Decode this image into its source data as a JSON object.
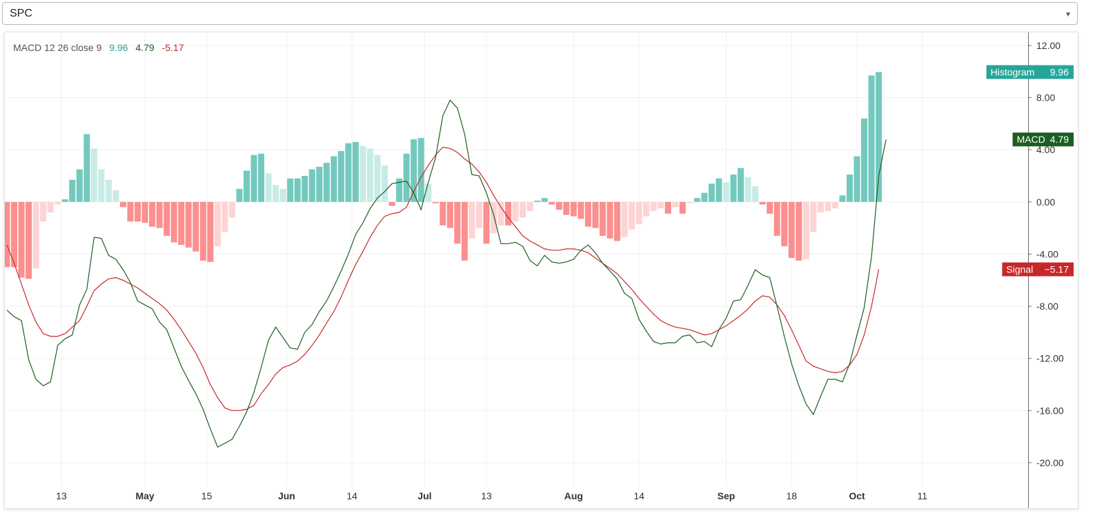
{
  "symbol_select": {
    "value": "SPC"
  },
  "legend": {
    "indicator_label": "MACD 12 26 close 9",
    "histogram_value": "9.96",
    "macd_value": "4.79",
    "signal_value": "-5.17"
  },
  "price_tags": [
    {
      "label": "Histogram",
      "value": "9.96",
      "level": 9.96,
      "color": "#26a69a"
    },
    {
      "label": "MACD",
      "value": "4.79",
      "level": 4.79,
      "color": "#1b5e20"
    },
    {
      "label": "Signal",
      "value": "−5.17",
      "level": -5.17,
      "color": "#c62828"
    }
  ],
  "colors": {
    "hist_pos_strong": "#74c9be",
    "hist_pos_weak": "#c8ebe6",
    "hist_neg_strong": "#fb8f8f",
    "hist_neg_weak": "#fdd3d3",
    "macd_line": "#1b5e20",
    "signal_line": "#c62828",
    "legend_hist": "#26a69a",
    "legend_macd": "#1b5e20",
    "legend_signal": "#c62828"
  },
  "chart_data": {
    "type": "bar",
    "title": "",
    "y_ticks": [
      "12.00",
      "8.00",
      "4.00",
      "0.00",
      "-4.00",
      "-8.00",
      "-12.00",
      "-16.00",
      "-20.00"
    ],
    "y_tick_values": [
      12,
      8,
      4,
      0,
      -4,
      -8,
      -12,
      -16,
      -20
    ],
    "ylim": [
      -21.8,
      13.0
    ],
    "grid": true,
    "x_ticks": [
      {
        "label": "13",
        "bar": 7.5
      },
      {
        "label": "May",
        "bar": 19
      },
      {
        "label": "15",
        "bar": 27.5
      },
      {
        "label": "Jun",
        "bar": 38.5
      },
      {
        "label": "14",
        "bar": 47.5
      },
      {
        "label": "Jul",
        "bar": 57.5
      },
      {
        "label": "13",
        "bar": 66
      },
      {
        "label": "Aug",
        "bar": 78
      },
      {
        "label": "14",
        "bar": 87
      },
      {
        "label": "Sep",
        "bar": 99
      },
      {
        "label": "18",
        "bar": 108
      },
      {
        "label": "Oct",
        "bar": 117
      },
      {
        "label": "11",
        "bar": 126
      }
    ],
    "bar_count": 134,
    "series": [
      {
        "name": "Histogram",
        "values": [
          -5.0,
          -5.0,
          -5.8,
          -5.9,
          -5.1,
          -1.5,
          -0.8,
          -0.2,
          0.2,
          1.7,
          2.5,
          5.2,
          4.1,
          2.5,
          1.7,
          0.9,
          -0.4,
          -1.5,
          -1.5,
          -1.6,
          -1.9,
          -2.0,
          -2.6,
          -3.1,
          -3.3,
          -3.5,
          -3.8,
          -4.5,
          -4.6,
          -3.4,
          -2.3,
          -1.2,
          1.0,
          2.4,
          3.6,
          3.7,
          2.2,
          1.3,
          1.0,
          1.8,
          1.8,
          2.0,
          2.5,
          2.7,
          3.0,
          3.5,
          3.9,
          4.5,
          4.6,
          4.3,
          4.1,
          3.6,
          2.8,
          -0.3,
          1.8,
          3.7,
          4.8,
          4.9,
          1.4,
          -0.1,
          -1.8,
          -2.0,
          -3.2,
          -4.5,
          -2.8,
          -2.0,
          -3.2,
          -2.4,
          -1.8,
          -1.8,
          -1.5,
          -1.2,
          -0.7,
          0.1,
          0.3,
          -0.2,
          -0.6,
          -1.0,
          -1.1,
          -1.3,
          -1.9,
          -2.0,
          -2.6,
          -2.8,
          -3.0,
          -2.7,
          -2.1,
          -1.7,
          -1.1,
          -0.7,
          -0.5,
          -0.9,
          -0.4,
          -0.9,
          -0.1,
          0.3,
          0.7,
          1.4,
          1.8,
          1.5,
          2.1,
          2.6,
          1.9,
          1.2,
          -0.2,
          -0.9,
          -2.6,
          -3.4,
          -4.3,
          -4.5,
          -4.4,
          -2.3,
          -0.8,
          -0.7,
          -0.5,
          0.5,
          2.1,
          3.5,
          6.4,
          9.7,
          9.96
        ]
      },
      {
        "name": "MACD",
        "values": [
          -8.3,
          -8.8,
          -9.1,
          -12.1,
          -13.6,
          -14.1,
          -13.8,
          -11.0,
          -10.5,
          -10.2,
          -7.9,
          -6.7,
          -2.7,
          -2.8,
          -4.1,
          -4.4,
          -5.2,
          -6.2,
          -7.6,
          -7.9,
          -8.2,
          -9.2,
          -9.8,
          -11.2,
          -12.6,
          -13.7,
          -14.7,
          -15.9,
          -17.4,
          -18.8,
          -18.5,
          -18.2,
          -17.2,
          -16.1,
          -14.6,
          -12.7,
          -10.6,
          -9.6,
          -10.4,
          -11.2,
          -11.3,
          -10.0,
          -9.4,
          -8.4,
          -7.6,
          -6.5,
          -5.3,
          -4.0,
          -2.5,
          -1.6,
          -0.5,
          0.3,
          0.8,
          1.4,
          1.5,
          1.6,
          0.7,
          -0.6,
          1.5,
          3.4,
          6.6,
          7.8,
          7.2,
          5.2,
          2.1,
          2.0,
          0.7,
          -1.0,
          -3.2,
          -3.2,
          -3.1,
          -3.4,
          -4.5,
          -4.9,
          -4.1,
          -4.6,
          -4.7,
          -4.6,
          -4.4,
          -3.7,
          -3.3,
          -3.9,
          -4.7,
          -5.3,
          -5.9,
          -7.0,
          -7.4,
          -9.0,
          -9.9,
          -10.7,
          -10.9,
          -10.8,
          -10.8,
          -10.3,
          -10.2,
          -10.8,
          -10.7,
          -11.1,
          -9.8,
          -8.9,
          -7.6,
          -7.5,
          -6.4,
          -5.2,
          -5.6,
          -5.8,
          -8.0,
          -10.3,
          -12.4,
          -14.1,
          -15.5,
          -16.3,
          -14.9,
          -13.6,
          -13.6,
          -13.8,
          -12.4,
          -10.2,
          -8.1,
          -4.2,
          2.0,
          4.79
        ]
      },
      {
        "name": "Signal",
        "values": [
          -3.3,
          -4.7,
          -6.3,
          -7.9,
          -9.2,
          -10.1,
          -10.3,
          -10.3,
          -10.1,
          -9.6,
          -9.1,
          -8.0,
          -6.8,
          -6.3,
          -5.9,
          -5.8,
          -6.0,
          -6.3,
          -6.6,
          -7.0,
          -7.4,
          -7.8,
          -8.3,
          -9.0,
          -9.8,
          -10.7,
          -11.6,
          -12.7,
          -14.0,
          -15.0,
          -15.8,
          -16.0,
          -16.0,
          -15.9,
          -15.6,
          -14.7,
          -14.0,
          -13.2,
          -12.7,
          -12.5,
          -12.2,
          -11.7,
          -11.0,
          -10.2,
          -9.3,
          -8.4,
          -7.3,
          -6.0,
          -4.8,
          -3.8,
          -2.7,
          -1.8,
          -1.1,
          -0.9,
          -0.8,
          -0.4,
          0.8,
          1.9,
          2.8,
          3.6,
          4.2,
          4.1,
          3.8,
          3.3,
          2.9,
          2.3,
          1.5,
          0.5,
          -0.4,
          -1.2,
          -1.9,
          -2.6,
          -3.0,
          -3.3,
          -3.6,
          -3.7,
          -3.7,
          -3.6,
          -3.6,
          -3.7,
          -3.9,
          -4.3,
          -4.7,
          -5.1,
          -5.5,
          -6.1,
          -6.7,
          -7.4,
          -8.0,
          -8.6,
          -9.1,
          -9.4,
          -9.6,
          -9.7,
          -9.8,
          -10.0,
          -10.2,
          -10.1,
          -9.8,
          -9.5,
          -9.1,
          -8.7,
          -8.2,
          -7.6,
          -7.2,
          -7.3,
          -7.9,
          -8.7,
          -9.8,
          -11.0,
          -12.2,
          -12.6,
          -12.8,
          -13.0,
          -13.1,
          -13.0,
          -12.5,
          -11.7,
          -10.2,
          -8.0,
          -5.17
        ]
      }
    ]
  }
}
